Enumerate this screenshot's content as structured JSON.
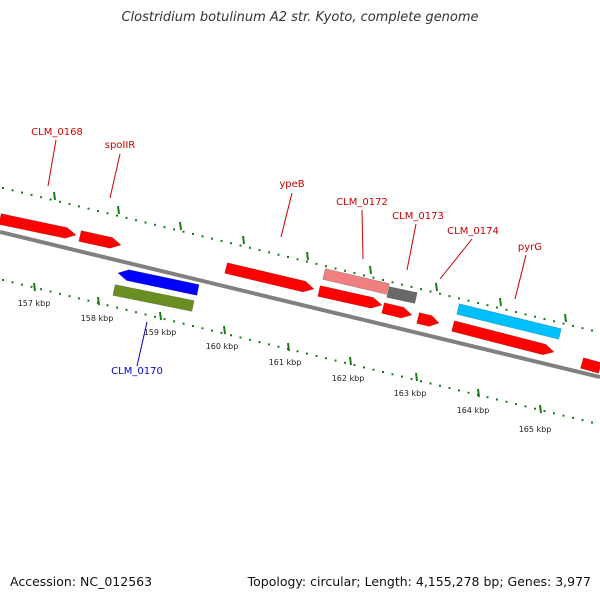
{
  "header": {
    "title": "Clostridium botulinum A2 str. Kyoto, complete genome"
  },
  "footer": {
    "accession": "Accession: NC_012563",
    "summary": "Topology: circular; Length: 4,155,278 bp; Genes: 3,977"
  },
  "colors": {
    "backbone": "#808080",
    "forward_gene": "#ff0000",
    "reverse_gene": "#ff0000",
    "pseudo_gene": "#f08080",
    "rna_gene": "#696969",
    "blue_gene": "#0000ff",
    "olive_gene": "#6b8e23",
    "cyan_gene": "#00bfff",
    "tick": "#1a7a1a",
    "red_label": "#cc0000",
    "blue_label": "#0000cc"
  },
  "scale_ticks": [
    "157 kbp",
    "158 kbp",
    "159 kbp",
    "160 kbp",
    "161 kbp",
    "162 kbp",
    "163 kbp",
    "164 kbp",
    "165 kbp"
  ],
  "gene_labels": [
    {
      "text": "CLM_0168",
      "color": "red"
    },
    {
      "text": "spoIIR",
      "color": "red"
    },
    {
      "text": "ypeB",
      "color": "red"
    },
    {
      "text": "CLM_0172",
      "color": "red"
    },
    {
      "text": "CLM_0173",
      "color": "red"
    },
    {
      "text": "CLM_0174",
      "color": "red"
    },
    {
      "text": "pyrG",
      "color": "red"
    },
    {
      "text": "CLM_0170",
      "color": "blue"
    }
  ]
}
